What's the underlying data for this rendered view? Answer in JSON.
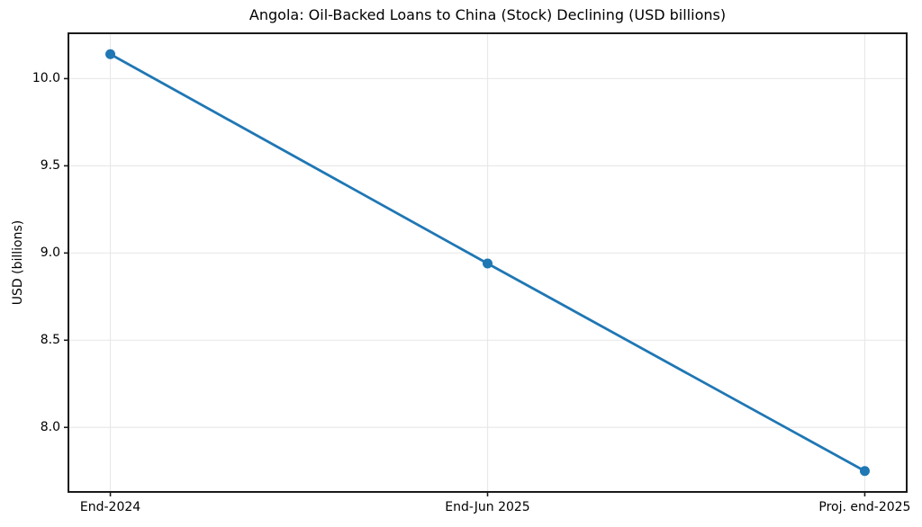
{
  "chart_data": {
    "type": "line",
    "title": "Angola: Oil-Backed Loans to China (Stock) Declining (USD billions)",
    "ylabel": "USD (billions)",
    "xlabel": "",
    "categories": [
      "End-2024",
      "End-Jun 2025",
      "Proj. end-2025"
    ],
    "values": [
      10.14,
      8.94,
      7.75
    ],
    "ylim": [
      7.63,
      10.26
    ],
    "yticks": [
      8.0,
      8.5,
      9.0,
      9.5,
      10.0
    ],
    "ytick_labels": [
      "8.0",
      "8.5",
      "9.0",
      "9.5",
      "10.0"
    ],
    "grid": true,
    "legend_position": "none",
    "line_color": "#1f77b4",
    "marker": "circle",
    "grid_color": "#e9e9e9",
    "spine_color": "#1a1a1a",
    "background": "#ffffff"
  }
}
